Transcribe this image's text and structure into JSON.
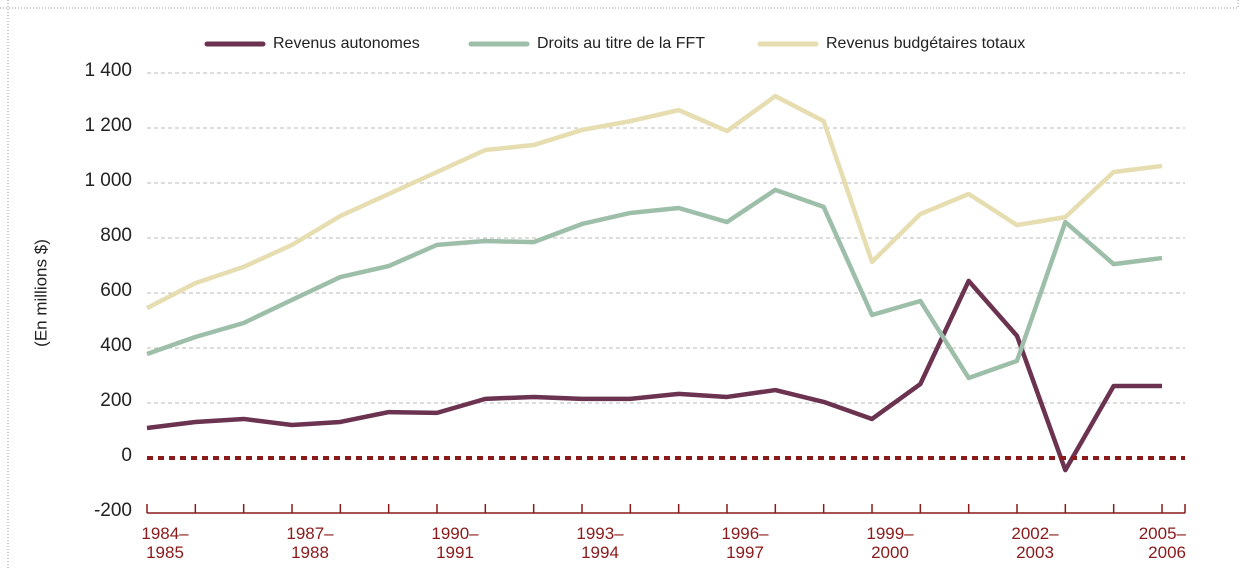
{
  "chart_data": {
    "type": "line",
    "y_label": "(En millions $)",
    "categories": [
      "1984–1985",
      null,
      null,
      "1987–1988",
      null,
      null,
      "1990–1991",
      null,
      null,
      "1993–1994",
      null,
      null,
      "1996–1997",
      null,
      null,
      "1999–2000",
      null,
      null,
      "2002–2003",
      null,
      null,
      "2005–2006"
    ],
    "series": [
      {
        "name": "Revenus autonomes",
        "color": "#6b3350",
        "values": [
          109,
          131,
          142,
          120,
          131,
          167,
          164,
          215,
          222,
          215,
          215,
          233,
          222,
          247,
          204,
          142,
          269,
          644,
          444,
          -44,
          262,
          262
        ]
      },
      {
        "name": "Droits au titre de la FFT",
        "color": "#9dbfaa",
        "values": [
          378,
          440,
          491,
          575,
          658,
          698,
          775,
          789,
          785,
          851,
          891,
          909,
          858,
          975,
          913,
          520,
          571,
          291,
          353,
          858,
          705,
          727
        ]
      },
      {
        "name": "Revenus budgétaires totaux",
        "color": "#e6ddb0",
        "values": [
          545,
          636,
          695,
          775,
          880,
          960,
          1040,
          1120,
          1138,
          1193,
          1225,
          1265,
          1189,
          1316,
          1225,
          713,
          887,
          960,
          847,
          876,
          1040,
          1062
        ]
      }
    ],
    "ylim": [
      -200,
      1400
    ],
    "yticks": [
      -200,
      0,
      200,
      400,
      600,
      800,
      {
        "value": 1000,
        "label": "1 000"
      },
      {
        "value": 1200,
        "label": "1 200"
      },
      {
        "value": 1400,
        "label": "1 400"
      }
    ],
    "grid": true,
    "legend": "top",
    "zero_line_color": "#8b1a1a",
    "axis_color": "#8b1a1a"
  }
}
